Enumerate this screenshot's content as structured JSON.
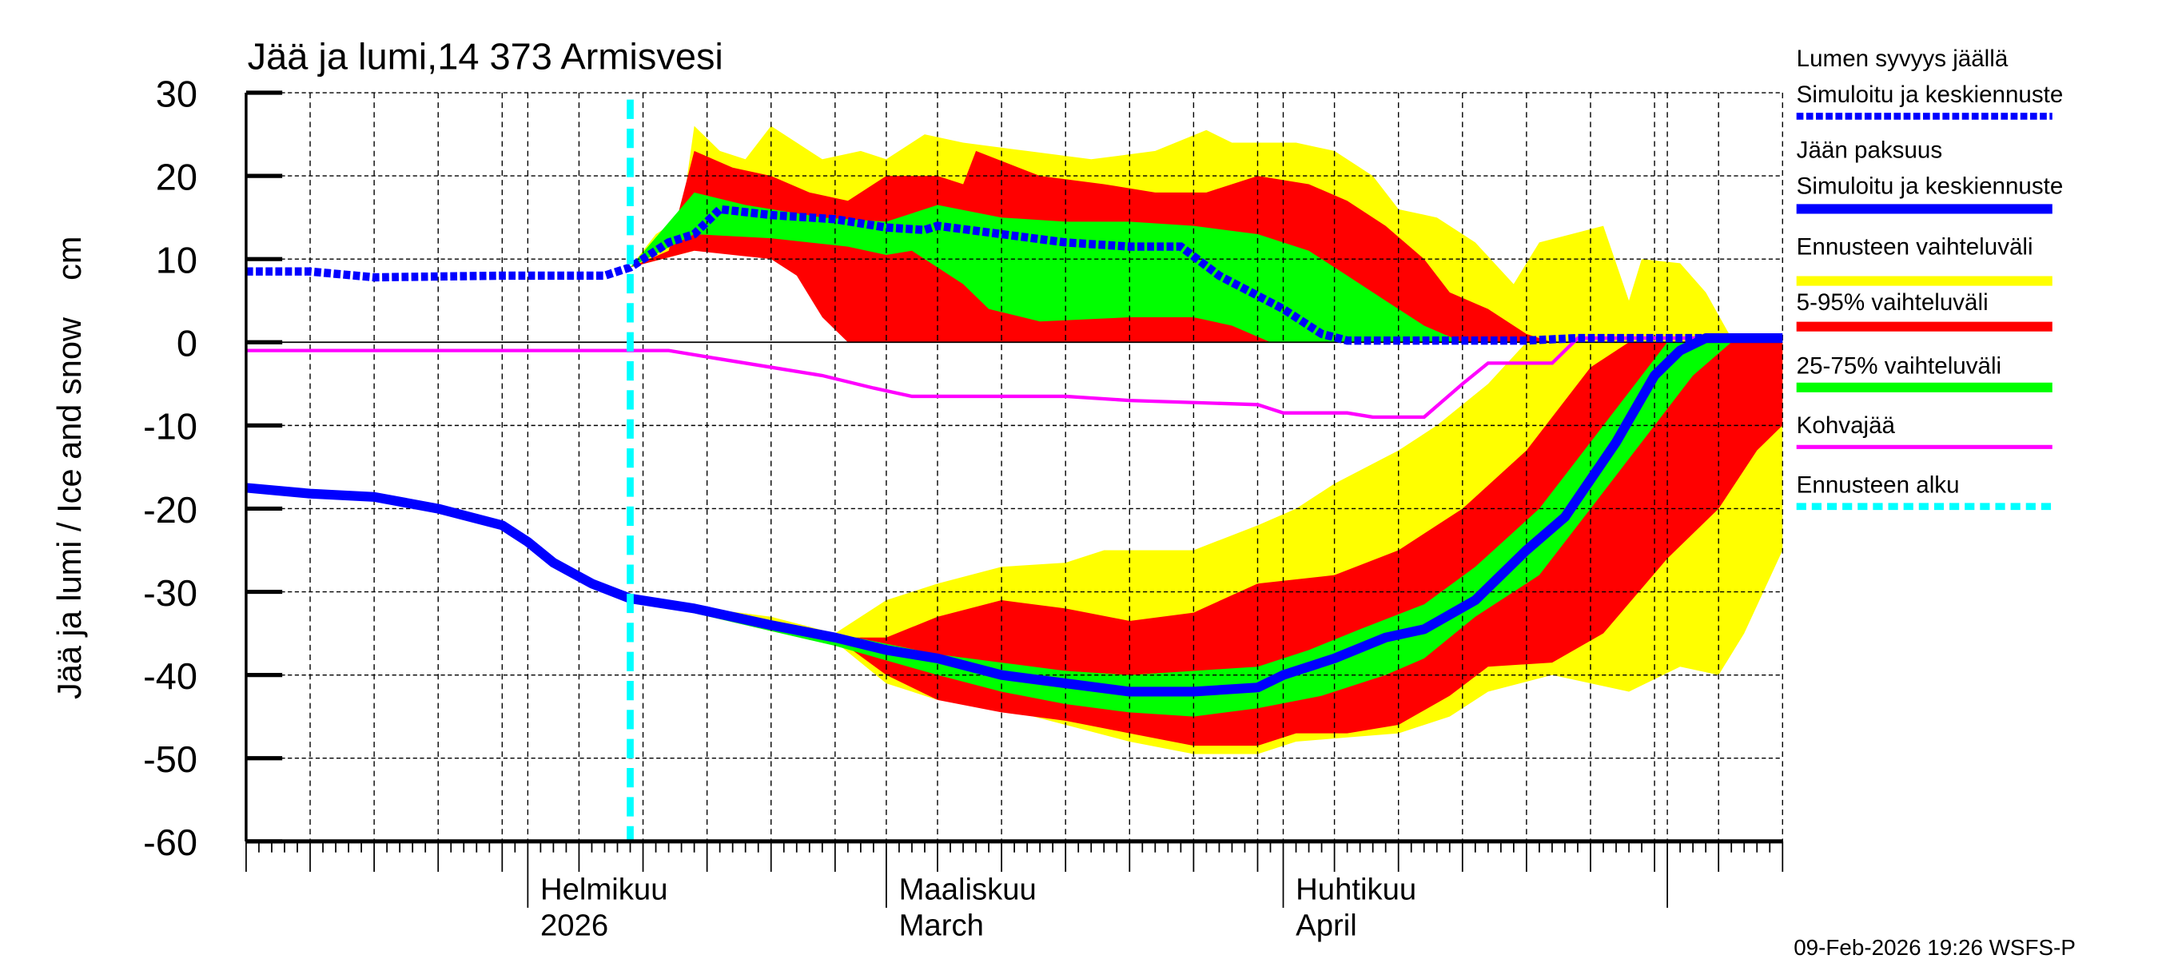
{
  "chart_data": {
    "type": "area",
    "title": "Jää ja lumi,14 373 Armisvesi",
    "ylabel": "Jää ja lumi / Ice and snow    cm",
    "xlabel": "",
    "xlim": [
      "2026-01-10",
      "2026-05-10"
    ],
    "ylim": [
      -60,
      30
    ],
    "yticks": [
      30,
      20,
      10,
      0,
      -10,
      -20,
      -30,
      -40,
      -50,
      -60
    ],
    "grid": true,
    "legend_placement": "right",
    "month_labels": [
      {
        "date": "2026-02-01",
        "line1": "Helmikuu",
        "line2": "2026"
      },
      {
        "date": "2026-03-01",
        "line1": "Maaliskuu",
        "line2": "March"
      },
      {
        "date": "2026-04-01",
        "line1": "Huhtikuu",
        "line2": "April"
      }
    ],
    "forecast_start": "2026-02-09",
    "colors": {
      "snow": "#0000ff",
      "ice": "#0000ff",
      "range": "#ffff00",
      "p5_95": "#ff0000",
      "p25_75": "#00ff00",
      "slush": "#ff00ff",
      "forecast_start": "#00ffff"
    },
    "legend": [
      {
        "line1": "Lumen syvyys jäällä",
        "line2": "Simuloitu ja keskiennuste",
        "style": "blue-dotted"
      },
      {
        "line1": "Jään paksuus",
        "line2": "Simuloitu ja keskiennuste",
        "style": "blue-solid"
      },
      {
        "line1": "Ennusteen vaihteluväli",
        "style": "yellow"
      },
      {
        "line1": "5-95% vaihteluväli",
        "style": "red"
      },
      {
        "line1": "25-75% vaihteluväli",
        "style": "green"
      },
      {
        "line1": "Kohvajää",
        "style": "magenta"
      },
      {
        "line1": "Ennusteen alku",
        "style": "cyan-dashed"
      }
    ],
    "snow": {
      "median": [
        [
          "2026-01-10",
          8.5
        ],
        [
          "2026-01-15",
          8.5
        ],
        [
          "2026-01-20",
          7.8
        ],
        [
          "2026-01-25",
          7.9
        ],
        [
          "2026-01-30",
          8
        ],
        [
          "2026-02-04",
          8
        ],
        [
          "2026-02-07",
          8
        ],
        [
          "2026-02-09",
          9
        ],
        [
          "2026-02-12",
          12
        ],
        [
          "2026-02-14",
          13
        ],
        [
          "2026-02-16",
          16
        ],
        [
          "2026-02-20",
          15.3
        ],
        [
          "2026-02-25",
          14.8
        ],
        [
          "2026-03-01",
          13.8
        ],
        [
          "2026-03-04",
          13.5
        ],
        [
          "2026-03-05",
          14
        ],
        [
          "2026-03-10",
          13
        ],
        [
          "2026-03-15",
          12
        ],
        [
          "2026-03-20",
          11.5
        ],
        [
          "2026-03-24",
          11.5
        ],
        [
          "2026-03-27",
          8
        ],
        [
          "2026-04-01",
          4
        ],
        [
          "2026-04-04",
          1
        ],
        [
          "2026-04-06",
          0.2
        ],
        [
          "2026-04-20",
          0.2
        ],
        [
          "2026-04-24",
          0.5
        ],
        [
          "2026-05-10",
          0.5
        ]
      ],
      "range_max": [
        [
          "2026-02-09",
          9
        ],
        [
          "2026-02-11",
          13
        ],
        [
          "2026-02-13",
          15
        ],
        [
          "2026-02-14",
          26
        ],
        [
          "2026-02-16",
          23
        ],
        [
          "2026-02-18",
          22
        ],
        [
          "2026-02-20",
          26
        ],
        [
          "2026-02-22",
          24
        ],
        [
          "2026-02-24",
          22
        ],
        [
          "2026-02-27",
          23
        ],
        [
          "2026-03-01",
          22
        ],
        [
          "2026-03-04",
          25
        ],
        [
          "2026-03-07",
          24
        ],
        [
          "2026-03-12",
          23
        ],
        [
          "2026-03-17",
          22
        ],
        [
          "2026-03-22",
          23
        ],
        [
          "2026-03-26",
          25.5
        ],
        [
          "2026-03-28",
          24
        ],
        [
          "2026-04-02",
          24
        ],
        [
          "2026-04-05",
          23
        ],
        [
          "2026-04-08",
          20
        ],
        [
          "2026-04-10",
          16
        ],
        [
          "2026-04-13",
          15
        ],
        [
          "2026-04-16",
          12
        ],
        [
          "2026-04-19",
          7
        ],
        [
          "2026-04-21",
          12
        ],
        [
          "2026-04-26",
          14
        ],
        [
          "2026-04-28",
          5
        ],
        [
          "2026-04-29",
          10
        ],
        [
          "2026-05-02",
          9.5
        ],
        [
          "2026-05-04",
          6
        ],
        [
          "2026-05-06",
          0.5
        ],
        [
          "2026-05-10",
          0.5
        ]
      ],
      "range_min": [
        [
          "2026-02-09",
          9
        ],
        [
          "2026-02-14",
          11
        ],
        [
          "2026-02-20",
          11
        ],
        [
          "2026-02-23",
          9
        ],
        [
          "2026-02-25",
          5
        ],
        [
          "2026-02-27",
          0
        ],
        [
          "2026-05-10",
          0
        ]
      ],
      "p95": [
        [
          "2026-02-09",
          9
        ],
        [
          "2026-02-12",
          11
        ],
        [
          "2026-02-14",
          23
        ],
        [
          "2026-02-17",
          21
        ],
        [
          "2026-02-20",
          20
        ],
        [
          "2026-02-23",
          18
        ],
        [
          "2026-02-26",
          17
        ],
        [
          "2026-03-01",
          20
        ],
        [
          "2026-03-05",
          20
        ],
        [
          "2026-03-07",
          19
        ],
        [
          "2026-03-08",
          23
        ],
        [
          "2026-03-13",
          20
        ],
        [
          "2026-03-18",
          19
        ],
        [
          "2026-03-22",
          18
        ],
        [
          "2026-03-26",
          18
        ],
        [
          "2026-03-30",
          20
        ],
        [
          "2026-04-03",
          19
        ],
        [
          "2026-04-06",
          17
        ],
        [
          "2026-04-09",
          14
        ],
        [
          "2026-04-12",
          10
        ],
        [
          "2026-04-14",
          6
        ],
        [
          "2026-04-17",
          4
        ],
        [
          "2026-04-20",
          1
        ],
        [
          "2026-04-22",
          0
        ],
        [
          "2026-05-10",
          0
        ]
      ],
      "p5": [
        [
          "2026-02-09",
          9
        ],
        [
          "2026-02-14",
          11
        ],
        [
          "2026-02-20",
          10
        ],
        [
          "2026-02-22",
          8
        ],
        [
          "2026-02-24",
          3
        ],
        [
          "2026-02-26",
          0
        ],
        [
          "2026-05-10",
          0
        ]
      ],
      "p75": [
        [
          "2026-02-09",
          9
        ],
        [
          "2026-02-14",
          18
        ],
        [
          "2026-02-18",
          16.5
        ],
        [
          "2026-02-24",
          15
        ],
        [
          "2026-03-01",
          14.5
        ],
        [
          "2026-03-05",
          16.5
        ],
        [
          "2026-03-10",
          15
        ],
        [
          "2026-03-15",
          14.5
        ],
        [
          "2026-03-20",
          14.5
        ],
        [
          "2026-03-25",
          14
        ],
        [
          "2026-03-30",
          13
        ],
        [
          "2026-04-03",
          11
        ],
        [
          "2026-04-06",
          8
        ],
        [
          "2026-04-09",
          5
        ],
        [
          "2026-04-12",
          2
        ],
        [
          "2026-04-15",
          0
        ],
        [
          "2026-05-10",
          0
        ]
      ],
      "p25": [
        [
          "2026-02-09",
          9
        ],
        [
          "2026-02-14",
          13
        ],
        [
          "2026-02-20",
          12.5
        ],
        [
          "2026-02-26",
          11.5
        ],
        [
          "2026-03-01",
          10.5
        ],
        [
          "2026-03-03",
          11
        ],
        [
          "2026-03-07",
          7
        ],
        [
          "2026-03-09",
          4
        ],
        [
          "2026-03-13",
          2.5
        ],
        [
          "2026-03-20",
          3
        ],
        [
          "2026-03-25",
          3
        ],
        [
          "2026-03-28",
          2
        ],
        [
          "2026-03-31",
          0
        ],
        [
          "2026-05-10",
          0
        ]
      ]
    },
    "ice": {
      "median": [
        [
          "2026-01-10",
          -17.5
        ],
        [
          "2026-01-15",
          -18.2
        ],
        [
          "2026-01-20",
          -18.6
        ],
        [
          "2026-01-25",
          -20
        ],
        [
          "2026-01-30",
          -22
        ],
        [
          "2026-02-01",
          -24
        ],
        [
          "2026-02-03",
          -26.5
        ],
        [
          "2026-02-06",
          -29
        ],
        [
          "2026-02-09",
          -30.8
        ],
        [
          "2026-02-14",
          -32
        ],
        [
          "2026-02-20",
          -34
        ],
        [
          "2026-02-25",
          -35.5
        ],
        [
          "2026-03-01",
          -37
        ],
        [
          "2026-03-05",
          -38
        ],
        [
          "2026-03-10",
          -40
        ],
        [
          "2026-03-15",
          -41
        ],
        [
          "2026-03-20",
          -42
        ],
        [
          "2026-03-25",
          -42
        ],
        [
          "2026-03-30",
          -41.5
        ],
        [
          "2026-04-01",
          -40
        ],
        [
          "2026-04-05",
          -38
        ],
        [
          "2026-04-09",
          -35.5
        ],
        [
          "2026-04-12",
          -34.5
        ],
        [
          "2026-04-16",
          -31
        ],
        [
          "2026-04-20",
          -25
        ],
        [
          "2026-04-23",
          -21
        ],
        [
          "2026-04-27",
          -12
        ],
        [
          "2026-04-30",
          -4
        ],
        [
          "2026-05-02",
          -1
        ],
        [
          "2026-05-04",
          0.5
        ],
        [
          "2026-05-10",
          0.5
        ]
      ],
      "range_max": [
        [
          "2026-02-09",
          -30.8
        ],
        [
          "2026-02-20",
          -33
        ],
        [
          "2026-02-25",
          -35
        ],
        [
          "2026-03-01",
          -31
        ],
        [
          "2026-03-05",
          -29
        ],
        [
          "2026-03-10",
          -27
        ],
        [
          "2026-03-15",
          -26.5
        ],
        [
          "2026-03-18",
          -25
        ],
        [
          "2026-03-25",
          -25
        ],
        [
          "2026-03-30",
          -22
        ],
        [
          "2026-04-02",
          -20
        ],
        [
          "2026-04-05",
          -17
        ],
        [
          "2026-04-10",
          -13
        ],
        [
          "2026-04-13",
          -10
        ],
        [
          "2026-04-17",
          -5
        ],
        [
          "2026-04-20",
          0
        ],
        [
          "2026-05-10",
          0
        ]
      ],
      "range_min": [
        [
          "2026-02-09",
          -30.8
        ],
        [
          "2026-02-20",
          -34
        ],
        [
          "2026-02-25",
          -36
        ],
        [
          "2026-03-01",
          -41
        ],
        [
          "2026-03-05",
          -43
        ],
        [
          "2026-03-10",
          -44
        ],
        [
          "2026-03-15",
          -46
        ],
        [
          "2026-03-20",
          -48
        ],
        [
          "2026-03-25",
          -49.5
        ],
        [
          "2026-03-30",
          -49.5
        ],
        [
          "2026-04-02",
          -48
        ],
        [
          "2026-04-06",
          -47.5
        ],
        [
          "2026-04-10",
          -47
        ],
        [
          "2026-04-14",
          -45
        ],
        [
          "2026-04-17",
          -42
        ],
        [
          "2026-04-22",
          -40
        ],
        [
          "2026-04-28",
          -42
        ],
        [
          "2026-05-02",
          -39
        ],
        [
          "2026-05-05",
          -40
        ],
        [
          "2026-05-07",
          -35
        ],
        [
          "2026-05-10",
          -25
        ]
      ],
      "p95": [
        [
          "2026-02-09",
          -30.8
        ],
        [
          "2026-02-25",
          -35.5
        ],
        [
          "2026-03-01",
          -35.5
        ],
        [
          "2026-03-05",
          -33
        ],
        [
          "2026-03-10",
          -31
        ],
        [
          "2026-03-15",
          -32
        ],
        [
          "2026-03-20",
          -33.5
        ],
        [
          "2026-03-25",
          -32.5
        ],
        [
          "2026-03-30",
          -29
        ],
        [
          "2026-04-05",
          -28
        ],
        [
          "2026-04-10",
          -25
        ],
        [
          "2026-04-15",
          -20
        ],
        [
          "2026-04-20",
          -13
        ],
        [
          "2026-04-25",
          -3
        ],
        [
          "2026-04-28",
          0
        ],
        [
          "2026-05-10",
          0
        ]
      ],
      "p5": [
        [
          "2026-02-09",
          -30.8
        ],
        [
          "2026-02-25",
          -35.5
        ],
        [
          "2026-03-01",
          -40
        ],
        [
          "2026-03-05",
          -43
        ],
        [
          "2026-03-10",
          -44.5
        ],
        [
          "2026-03-15",
          -45.5
        ],
        [
          "2026-03-20",
          -47
        ],
        [
          "2026-03-25",
          -48.5
        ],
        [
          "2026-03-30",
          -48.5
        ],
        [
          "2026-04-02",
          -47
        ],
        [
          "2026-04-06",
          -47
        ],
        [
          "2026-04-10",
          -46
        ],
        [
          "2026-04-14",
          -42.5
        ],
        [
          "2026-04-17",
          -39
        ],
        [
          "2026-04-22",
          -38.5
        ],
        [
          "2026-04-26",
          -35
        ],
        [
          "2026-05-01",
          -26
        ],
        [
          "2026-05-05",
          -20
        ],
        [
          "2026-05-08",
          -13
        ],
        [
          "2026-05-10",
          -10
        ]
      ],
      "p75": [
        [
          "2026-02-09",
          -30.8
        ],
        [
          "2026-02-25",
          -35
        ],
        [
          "2026-03-05",
          -37.5
        ],
        [
          "2026-03-10",
          -38.5
        ],
        [
          "2026-03-15",
          -39.5
        ],
        [
          "2026-03-20",
          -40
        ],
        [
          "2026-03-25",
          -39.5
        ],
        [
          "2026-03-30",
          -39
        ],
        [
          "2026-04-03",
          -37
        ],
        [
          "2026-04-07",
          -34.5
        ],
        [
          "2026-04-12",
          -31.5
        ],
        [
          "2026-04-16",
          -27
        ],
        [
          "2026-04-21",
          -20
        ],
        [
          "2026-04-25",
          -12
        ],
        [
          "2026-04-28",
          -6
        ],
        [
          "2026-05-01",
          0
        ],
        [
          "2026-05-10",
          0
        ]
      ],
      "p25": [
        [
          "2026-02-09",
          -30.8
        ],
        [
          "2026-02-25",
          -36.5
        ],
        [
          "2026-03-05",
          -40
        ],
        [
          "2026-03-10",
          -42
        ],
        [
          "2026-03-15",
          -43.5
        ],
        [
          "2026-03-20",
          -44.5
        ],
        [
          "2026-03-25",
          -45
        ],
        [
          "2026-03-30",
          -44
        ],
        [
          "2026-04-04",
          -42.5
        ],
        [
          "2026-04-09",
          -40
        ],
        [
          "2026-04-12",
          -38
        ],
        [
          "2026-04-16",
          -33
        ],
        [
          "2026-04-21",
          -28
        ],
        [
          "2026-04-25",
          -20
        ],
        [
          "2026-04-29",
          -12
        ],
        [
          "2026-05-03",
          -4
        ],
        [
          "2026-05-06",
          0
        ],
        [
          "2026-05-10",
          0
        ]
      ]
    },
    "slush": [
      [
        "2026-01-10",
        -1
      ],
      [
        "2026-02-12",
        -1
      ],
      [
        "2026-02-16",
        -2
      ],
      [
        "2026-02-20",
        -3
      ],
      [
        "2026-02-24",
        -4
      ],
      [
        "2026-02-28",
        -5.5
      ],
      [
        "2026-03-03",
        -6.5
      ],
      [
        "2026-03-15",
        -6.5
      ],
      [
        "2026-03-20",
        -7
      ],
      [
        "2026-03-30",
        -7.5
      ],
      [
        "2026-04-01",
        -8.5
      ],
      [
        "2026-04-06",
        -8.5
      ],
      [
        "2026-04-08",
        -9
      ],
      [
        "2026-04-12",
        -9
      ],
      [
        "2026-04-15",
        -5
      ],
      [
        "2026-04-17",
        -2.5
      ],
      [
        "2026-04-22",
        -2.5
      ],
      [
        "2026-04-24",
        0.5
      ],
      [
        "2026-05-10",
        0.5
      ]
    ]
  },
  "footer": {
    "timestamp": "09-Feb-2026 19:26 WSFS-P"
  }
}
